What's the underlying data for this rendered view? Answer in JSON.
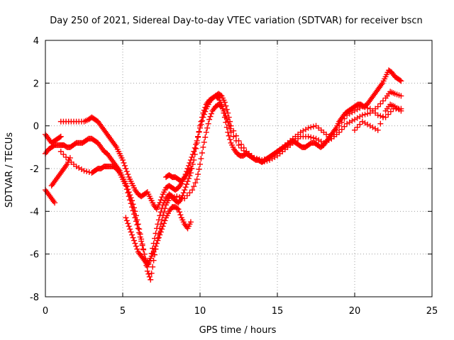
{
  "chart_data": {
    "type": "scatter",
    "title": "Day 250 of 2021, Sidereal Day-to-day VTEC variation (SDTVAR) for receiver bscn",
    "xlabel": "GPS time / hours",
    "ylabel": "SDTVAR / TECUs",
    "xlim": [
      0,
      25
    ],
    "ylim": [
      -8,
      4
    ],
    "xticks": [
      0,
      5,
      10,
      15,
      20,
      25
    ],
    "yticks": [
      -8,
      -6,
      -4,
      -2,
      0,
      2,
      4
    ],
    "grid": true,
    "marker": "+",
    "color": "#ff0000",
    "series": [
      {
        "x": [
          0.0,
          0.2,
          0.4,
          0.6,
          0.8,
          1.0,
          1.2,
          1.4,
          1.6,
          1.8,
          2.0,
          2.2,
          2.4,
          2.6,
          2.8,
          3.0,
          3.2,
          3.4,
          3.6,
          3.8,
          4.0,
          4.2,
          4.4,
          4.6,
          4.8,
          5.0,
          5.2,
          5.4,
          5.6,
          5.8,
          6.0,
          6.2,
          6.4,
          6.6,
          6.8,
          7.0,
          7.2,
          7.4,
          7.6,
          7.8,
          8.0,
          8.2,
          8.4,
          8.6,
          8.8,
          9.0,
          9.2,
          9.4,
          9.6,
          9.8,
          10.0,
          10.2,
          10.4,
          10.6,
          10.8,
          11.0,
          11.2,
          11.4,
          11.6,
          11.8,
          12.0,
          12.2,
          12.4,
          12.6,
          12.8,
          13.0,
          13.2,
          13.4,
          13.6,
          13.8,
          14.0,
          14.2,
          14.4,
          14.6,
          14.8,
          15.0,
          15.2,
          15.4,
          15.6,
          15.8,
          16.0,
          16.2,
          16.4,
          16.6,
          16.8,
          17.0,
          17.2,
          17.4,
          17.6,
          17.8,
          18.0,
          18.2,
          18.4,
          18.6,
          18.8,
          19.0,
          19.2,
          19.4,
          19.6,
          19.8,
          20.0,
          20.2,
          20.4,
          20.6,
          20.8,
          21.0,
          21.2,
          21.4,
          21.6,
          21.8,
          22.0,
          22.2,
          22.4,
          22.6,
          22.8,
          23.0
        ],
        "y": [
          -1.3,
          -1.1,
          -1.0,
          -0.9,
          -0.9,
          -0.9,
          -0.9,
          -1.0,
          -1.0,
          -0.9,
          -0.8,
          -0.8,
          -0.8,
          -0.7,
          -0.6,
          -0.6,
          -0.7,
          -0.8,
          -1.0,
          -1.2,
          -1.3,
          -1.5,
          -1.7,
          -1.9,
          -2.1,
          -2.4,
          -2.7,
          -3.1,
          -3.5,
          -4.0,
          -4.6,
          -5.3,
          -6.0,
          -6.6,
          -6.2,
          -5.5,
          -4.8,
          -4.2,
          -3.7,
          -3.4,
          -3.2,
          -3.3,
          -3.5,
          -3.6,
          -3.4,
          -3.0,
          -2.6,
          -2.2,
          -1.6,
          -0.8,
          0.0,
          0.6,
          1.0,
          1.2,
          1.3,
          1.4,
          1.3,
          1.0,
          0.4,
          -0.3,
          -0.8,
          -1.1,
          -1.3,
          -1.4,
          -1.4,
          -1.3,
          -1.4,
          -1.5,
          -1.6,
          -1.6,
          -1.7,
          -1.6,
          -1.5,
          -1.4,
          -1.3,
          -1.2,
          -1.1,
          -1.0,
          -0.9,
          -0.8,
          -0.7,
          -0.8,
          -0.9,
          -1.0,
          -1.0,
          -0.9,
          -0.8,
          -0.8,
          -0.9,
          -1.0,
          -0.9,
          -0.7,
          -0.5,
          -0.3,
          -0.1,
          0.2,
          0.4,
          0.6,
          0.7,
          0.8,
          0.9,
          1.0,
          1.0,
          0.9,
          1.0,
          1.2,
          1.4,
          1.6,
          1.8,
          2.0,
          2.3,
          2.6,
          2.5,
          2.3,
          2.2,
          2.1
        ]
      },
      {
        "x": [
          1.0,
          1.5,
          2.0,
          2.5,
          3.0,
          3.2,
          3.4,
          3.6,
          3.8,
          4.0,
          4.2,
          4.4,
          4.6,
          4.8,
          5.0,
          5.2,
          5.4,
          5.6,
          5.8,
          6.0,
          6.2,
          6.4,
          6.6,
          6.8,
          7.0,
          7.2,
          7.4,
          7.6,
          7.8,
          8.0,
          8.5,
          9.0,
          9.5,
          9.8,
          10.0,
          10.2,
          10.4,
          10.6,
          10.8,
          11.0,
          11.2,
          11.4,
          11.6,
          11.8,
          12.0,
          12.5,
          13.0,
          13.5,
          14.0,
          14.5,
          15.0,
          15.5,
          16.0,
          16.5,
          17.0,
          17.5,
          18.0,
          18.5,
          19.0,
          19.5,
          20.0,
          20.5,
          21.0,
          21.5,
          22.0,
          22.3,
          22.6,
          23.0
        ],
        "y": [
          -1.2,
          -1.6,
          -1.9,
          -2.1,
          -2.2,
          -2.1,
          -2.0,
          -2.0,
          -1.9,
          -1.9,
          -1.9,
          -1.9,
          -2.0,
          -2.2,
          -2.5,
          -2.8,
          -3.3,
          -3.8,
          -4.3,
          -4.8,
          -5.4,
          -6.0,
          -6.8,
          -7.2,
          -6.3,
          -5.5,
          -4.8,
          -4.2,
          -3.7,
          -3.4,
          -3.3,
          -3.4,
          -3.0,
          -2.5,
          -1.8,
          -1.0,
          -0.3,
          0.3,
          0.7,
          0.9,
          1.0,
          0.9,
          0.6,
          0.2,
          -0.3,
          -0.9,
          -1.3,
          -1.5,
          -1.7,
          -1.6,
          -1.4,
          -1.1,
          -0.8,
          -0.5,
          -0.5,
          -0.6,
          -0.8,
          -0.6,
          -0.3,
          0.1,
          0.3,
          0.5,
          0.6,
          0.9,
          1.3,
          1.6,
          1.5,
          1.4
        ]
      },
      {
        "x": [
          1.0,
          1.5,
          2.0,
          2.5,
          2.8,
          3.0,
          3.2,
          3.4,
          3.6,
          3.8,
          4.0,
          4.2,
          4.4,
          4.6,
          4.8,
          5.0,
          5.2,
          5.4,
          5.6,
          5.8,
          6.0,
          6.2,
          6.4,
          6.6,
          6.8,
          7.0,
          7.2,
          7.4,
          7.6,
          7.8,
          8.0,
          8.2,
          8.4,
          8.6,
          8.8,
          9.0,
          9.2,
          9.4,
          9.6,
          9.8,
          10.0,
          10.2,
          10.4,
          10.6,
          10.8,
          11.0,
          11.2,
          11.4,
          11.6,
          11.8,
          12.0,
          12.5,
          13.0,
          13.5,
          14.0,
          14.5,
          15.0,
          15.5,
          16.0,
          16.5,
          17.0,
          17.5,
          18.0,
          18.5,
          19.0,
          19.5,
          20.0,
          20.5,
          21.0,
          21.5,
          22.0,
          22.5,
          23.0
        ],
        "y": [
          0.2,
          0.2,
          0.2,
          0.2,
          0.3,
          0.4,
          0.3,
          0.2,
          0.0,
          -0.2,
          -0.4,
          -0.6,
          -0.8,
          -1.0,
          -1.3,
          -1.6,
          -2.0,
          -2.4,
          -2.7,
          -3.0,
          -3.2,
          -3.3,
          -3.2,
          -3.1,
          -3.4,
          -3.7,
          -3.9,
          -3.6,
          -3.2,
          -2.9,
          -2.8,
          -2.9,
          -3.0,
          -2.9,
          -2.7,
          -2.4,
          -2.0,
          -1.6,
          -1.2,
          -0.7,
          -0.1,
          0.4,
          0.8,
          1.1,
          1.3,
          1.4,
          1.5,
          1.4,
          1.1,
          0.6,
          0.0,
          -0.7,
          -1.2,
          -1.5,
          -1.6,
          -1.5,
          -1.2,
          -0.9,
          -0.6,
          -0.3,
          -0.1,
          0.0,
          -0.3,
          -0.6,
          0.0,
          0.5,
          0.7,
          0.9,
          0.8,
          0.5,
          0.4,
          0.8,
          0.8
        ]
      },
      {
        "x": [
          0.0,
          0.2,
          0.4,
          0.6,
          0.8,
          1.0
        ],
        "y": [
          -0.4,
          -0.6,
          -0.8,
          -0.7,
          -0.6,
          -0.5
        ]
      },
      {
        "x": [
          0.0,
          0.2,
          0.4,
          0.6
        ],
        "y": [
          -3.0,
          -3.2,
          -3.4,
          -3.6
        ]
      },
      {
        "x": [
          0.4,
          0.6,
          0.8,
          1.0,
          1.2,
          1.4,
          1.6
        ],
        "y": [
          -2.8,
          -2.6,
          -2.4,
          -2.2,
          -2.0,
          -1.8,
          -1.5
        ]
      },
      {
        "x": [
          5.2,
          5.4,
          5.6,
          5.8,
          6.0,
          6.2,
          6.4,
          6.6,
          6.8,
          7.0,
          7.2,
          7.4,
          7.6,
          7.8,
          8.0,
          8.2,
          8.4,
          8.6,
          8.8,
          9.0,
          9.2,
          9.4
        ],
        "y": [
          -4.3,
          -4.7,
          -5.1,
          -5.5,
          -5.9,
          -6.1,
          -6.3,
          -6.5,
          -6.2,
          -5.9,
          -5.5,
          -5.1,
          -4.7,
          -4.3,
          -4.0,
          -3.8,
          -3.8,
          -3.9,
          -4.3,
          -4.6,
          -4.8,
          -4.5
        ]
      },
      {
        "x": [
          7.8,
          8.0,
          8.2,
          8.4,
          8.6,
          8.8,
          9.0,
          9.2,
          9.4
        ],
        "y": [
          -2.4,
          -2.3,
          -2.4,
          -2.4,
          -2.5,
          -2.6,
          -2.4,
          -2.2,
          -2.0
        ]
      },
      {
        "x": [
          20.0,
          20.5,
          21.0,
          21.5,
          22.0,
          22.3,
          22.6,
          23.0
        ],
        "y": [
          -0.2,
          0.2,
          0.0,
          -0.2,
          0.7,
          1.0,
          0.9,
          0.7
        ]
      }
    ]
  }
}
